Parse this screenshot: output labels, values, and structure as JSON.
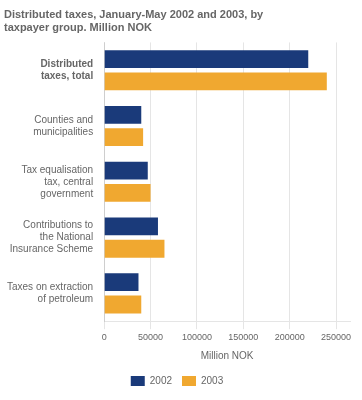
{
  "chart_data": {
    "type": "bar",
    "orientation": "horizontal",
    "title": "Distributed taxes, January-May 2002 and 2003, by\ntaxpayer group. Million NOK",
    "categories": [
      "Taxes on extraction\nof petroleum",
      "Contributions to\nthe National\nInsurance Scheme",
      "Tax equalisation\ntax, central\ngovernment",
      "Counties and\nmunicipalities",
      "Distributed\ntaxes, total"
    ],
    "series": [
      {
        "name": "2002",
        "color": "#1a3a7a",
        "values": [
          37000,
          58000,
          47000,
          40000,
          220000
        ]
      },
      {
        "name": "2003",
        "color": "#f0a830",
        "values": [
          40000,
          65000,
          50000,
          42000,
          240000
        ]
      }
    ],
    "xlabel": "Million NOK",
    "xlim": [
      0,
      265000
    ],
    "xticks": [
      0,
      50000,
      100000,
      150000,
      200000,
      250000
    ],
    "grid": true,
    "legend": "bottom"
  }
}
